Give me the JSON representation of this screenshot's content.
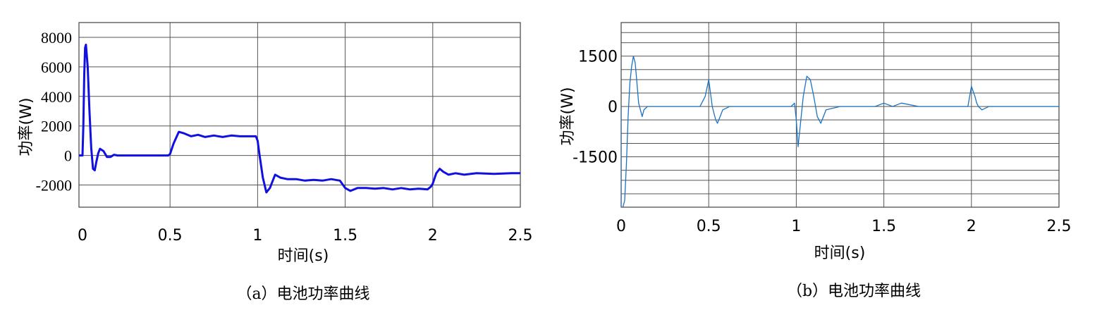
{
  "chart_data": [
    {
      "type": "line",
      "caption": "（a）电池功率曲线",
      "xlabel": "时间(s)",
      "ylabel": "功率(W)",
      "xlim": [
        -0.02,
        2.5
      ],
      "ylim": [
        -3500,
        9000
      ],
      "xticks": [
        "0",
        "0.5",
        "1",
        "1.5",
        "2",
        "2.5"
      ],
      "yticks": [
        "8000",
        "6000",
        "4000",
        "2000",
        "0",
        "-2000"
      ],
      "grid": true,
      "line_color": "#1010e0",
      "series": [
        {
          "x": [
            -0.02,
            0.0,
            0.005,
            0.01,
            0.015,
            0.02,
            0.03,
            0.04,
            0.05,
            0.06,
            0.07,
            0.08,
            0.09,
            0.1,
            0.12,
            0.14,
            0.16,
            0.18,
            0.2,
            0.22,
            0.25,
            0.3,
            0.35,
            0.4,
            0.45,
            0.49,
            0.5,
            0.52,
            0.55,
            0.58,
            0.62,
            0.66,
            0.7,
            0.75,
            0.8,
            0.85,
            0.9,
            0.95,
            0.99,
            1.0,
            1.01,
            1.03,
            1.05,
            1.07,
            1.1,
            1.13,
            1.17,
            1.22,
            1.27,
            1.32,
            1.37,
            1.42,
            1.47,
            1.5,
            1.53,
            1.57,
            1.62,
            1.67,
            1.72,
            1.77,
            1.82,
            1.87,
            1.92,
            1.97,
            1.99,
            2.0,
            2.02,
            2.04,
            2.06,
            2.09,
            2.13,
            2.18,
            2.25,
            2.35,
            2.45,
            2.5
          ],
          "y": [
            0,
            0,
            2000,
            5500,
            7300,
            7500,
            6000,
            3000,
            500,
            -900,
            -1000,
            -400,
            150,
            450,
            300,
            -100,
            -100,
            50,
            0,
            0,
            0,
            0,
            0,
            0,
            0,
            0,
            100,
            800,
            1600,
            1500,
            1300,
            1400,
            1250,
            1350,
            1250,
            1350,
            1300,
            1300,
            1300,
            1000,
            100,
            -1500,
            -2500,
            -2200,
            -1300,
            -1500,
            -1600,
            -1600,
            -1700,
            -1650,
            -1700,
            -1600,
            -1700,
            -2200,
            -2400,
            -2200,
            -2200,
            -2250,
            -2200,
            -2300,
            -2200,
            -2300,
            -2250,
            -2300,
            -2100,
            -1900,
            -1200,
            -900,
            -1100,
            -1300,
            -1200,
            -1300,
            -1200,
            -1250,
            -1200,
            -1200
          ]
        }
      ]
    },
    {
      "type": "line",
      "caption": "（b）电池功率曲线",
      "xlabel": "时间(s)",
      "ylabel": "功率(W)",
      "xlim": [
        0,
        2.5
      ],
      "ylim": [
        -3000,
        2500
      ],
      "xticks": [
        "0",
        "0.5",
        "1",
        "1.5",
        "2",
        "2.5"
      ],
      "yticks": [
        "1500",
        "0",
        "-1500"
      ],
      "grid": true,
      "line_color": "#1a73c2",
      "series": [
        {
          "x": [
            0.0,
            0.0,
            0.01,
            0.02,
            0.03,
            0.04,
            0.05,
            0.06,
            0.07,
            0.08,
            0.09,
            0.1,
            0.11,
            0.12,
            0.13,
            0.15,
            0.18,
            0.2,
            0.3,
            0.4,
            0.45,
            0.48,
            0.5,
            0.52,
            0.54,
            0.55,
            0.58,
            0.62,
            0.7,
            0.8,
            0.9,
            0.97,
            0.99,
            1.0,
            1.01,
            1.02,
            1.04,
            1.06,
            1.08,
            1.1,
            1.12,
            1.14,
            1.17,
            1.25,
            1.35,
            1.45,
            1.5,
            1.55,
            1.6,
            1.7,
            1.8,
            1.9,
            1.98,
            2.0,
            2.02,
            2.03,
            2.04,
            2.06,
            2.1,
            2.2,
            2.3,
            2.4,
            2.5
          ],
          "y": [
            0,
            -3000,
            -3000,
            -2800,
            -1700,
            -300,
            700,
            1200,
            1500,
            1300,
            700,
            100,
            -100,
            -300,
            -100,
            0,
            0,
            0,
            0,
            0,
            0,
            300,
            800,
            0,
            -400,
            -500,
            -100,
            0,
            0,
            0,
            0,
            0,
            100,
            -400,
            -1200,
            -700,
            300,
            900,
            800,
            300,
            -300,
            -500,
            -100,
            0,
            0,
            0,
            100,
            0,
            100,
            0,
            0,
            0,
            0,
            600,
            300,
            100,
            0,
            -100,
            0,
            0,
            0,
            0,
            0
          ]
        }
      ]
    }
  ]
}
